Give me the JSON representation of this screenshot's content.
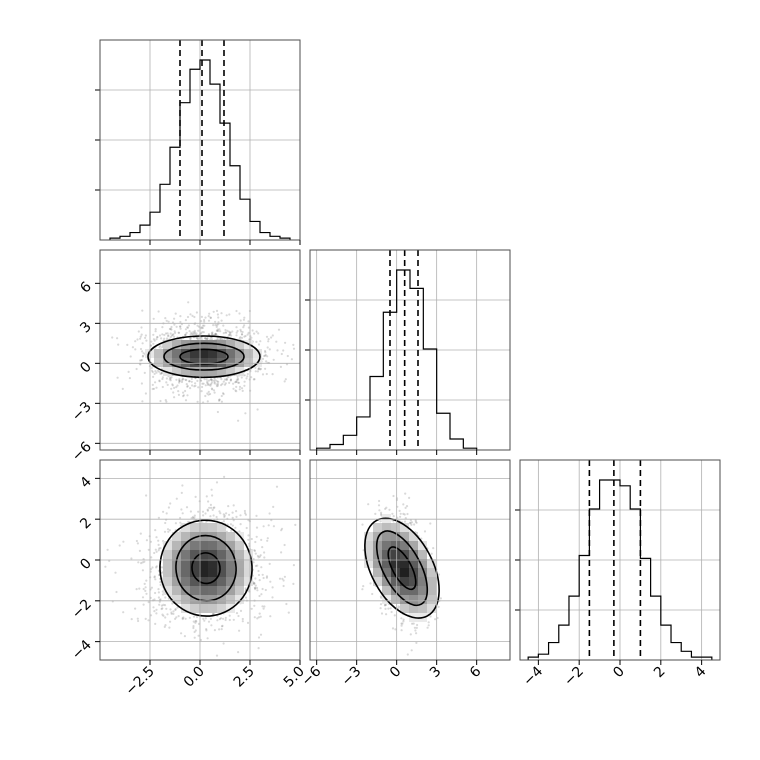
{
  "chart_data": {
    "type": "corner",
    "parameters": [
      {
        "axis_range": [
          -5,
          5
        ],
        "ticks": [
          "-2.5",
          "0.0",
          "2.5",
          "5.0"
        ],
        "tick_values": [
          -2.5,
          0.0,
          2.5,
          5.0
        ],
        "histogram": {
          "bin_edges": [
            -4.5,
            -4.0,
            -3.5,
            -3.0,
            -2.5,
            -2.0,
            -1.5,
            -1.0,
            -0.5,
            0.0,
            0.5,
            1.0,
            1.5,
            2.0,
            2.5,
            3.0,
            3.5,
            4.0,
            4.5
          ],
          "counts": [
            1,
            2,
            4,
            8,
            15,
            30,
            50,
            74,
            92,
            97,
            84,
            63,
            40,
            22,
            10,
            4,
            2,
            1
          ]
        },
        "quantiles": [
          -1.0,
          0.1,
          1.2
        ]
      },
      {
        "axis_range": [
          -6.5,
          8.5
        ],
        "ticks": [
          "-6",
          "-3",
          "0",
          "3",
          "6"
        ],
        "tick_values": [
          -6,
          -3,
          0,
          3,
          6
        ],
        "histogram": {
          "bin_edges": [
            -6,
            -5,
            -4,
            -3,
            -2,
            -1,
            0,
            1,
            2,
            3,
            4,
            5,
            6
          ],
          "counts": [
            1,
            3,
            8,
            18,
            40,
            75,
            98,
            88,
            55,
            20,
            6,
            1
          ]
        },
        "quantiles": [
          -0.5,
          0.6,
          1.6
        ]
      },
      {
        "axis_range": [
          -4.9,
          4.9
        ],
        "ticks": [
          "-4",
          "-2",
          "0",
          "2",
          "4"
        ],
        "tick_values": [
          -4,
          -2,
          0,
          2,
          4
        ],
        "histogram": {
          "bin_edges": [
            -4.5,
            -4.0,
            -3.5,
            -3.0,
            -2.5,
            -2.0,
            -1.5,
            -1.0,
            -0.5,
            0.0,
            0.5,
            1.0,
            1.5,
            2.0,
            2.5,
            3.0,
            3.5,
            4.0,
            4.5
          ],
          "counts": [
            1,
            2,
            6,
            12,
            22,
            36,
            52,
            62,
            62,
            60,
            52,
            35,
            22,
            12,
            6,
            3,
            1,
            1
          ]
        },
        "quantiles": [
          -1.5,
          -0.3,
          1.0
        ]
      }
    ],
    "pairs": [
      {
        "x": 0,
        "y": 1,
        "center": [
          0.2,
          0.5
        ],
        "spread": [
          1.5,
          1.3
        ],
        "rotation": 0,
        "contours": [
          [
            1.2,
            0.55
          ],
          [
            2.0,
            1.0
          ],
          [
            2.8,
            1.55
          ]
        ]
      },
      {
        "x": 0,
        "y": 2,
        "center": [
          0.3,
          -0.4
        ],
        "spread": [
          1.5,
          1.4
        ],
        "rotation": 8,
        "contours": [
          [
            0.7,
            0.75
          ],
          [
            1.5,
            1.6
          ],
          [
            2.3,
            2.35
          ]
        ]
      },
      {
        "x": 1,
        "y": 2,
        "center": [
          0.4,
          -0.4
        ],
        "spread": [
          0.9,
          1.3
        ],
        "rotation": 28,
        "contours": [
          [
            0.7,
            1.15
          ],
          [
            1.4,
            2.0
          ],
          [
            2.3,
            2.65
          ]
        ]
      }
    ],
    "grid": true
  }
}
